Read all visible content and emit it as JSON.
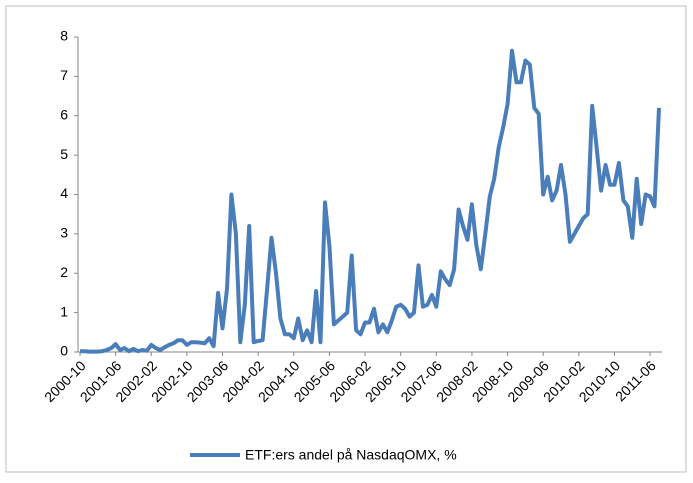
{
  "chart_data": {
    "type": "line",
    "categories": [
      "2000-10",
      null,
      null,
      null,
      null,
      null,
      null,
      null,
      "2001-06",
      null,
      null,
      null,
      null,
      null,
      null,
      null,
      "2002-02",
      null,
      null,
      null,
      null,
      null,
      null,
      null,
      "2002-10",
      null,
      null,
      null,
      null,
      null,
      null,
      null,
      "2003-06",
      null,
      null,
      null,
      null,
      null,
      null,
      null,
      "2004-02",
      null,
      null,
      null,
      null,
      null,
      null,
      null,
      "2004-10",
      null,
      null,
      null,
      null,
      null,
      null,
      null,
      "2005-06",
      null,
      null,
      null,
      null,
      null,
      null,
      null,
      "2006-02",
      null,
      null,
      null,
      null,
      null,
      null,
      null,
      "2006-10",
      null,
      null,
      null,
      null,
      null,
      null,
      null,
      "2007-06",
      null,
      null,
      null,
      null,
      null,
      null,
      null,
      "2008-02",
      null,
      null,
      null,
      null,
      null,
      null,
      null,
      "2008-10",
      null,
      null,
      null,
      null,
      null,
      null,
      null,
      "2009-06",
      null,
      null,
      null,
      null,
      null,
      null,
      null,
      "2010-02",
      null,
      null,
      null,
      null,
      null,
      null,
      null,
      "2010-10",
      null,
      null,
      null,
      null,
      null,
      null,
      null,
      "2011-06",
      null,
      null
    ],
    "series": [
      {
        "name": "ETF:ers andel på NasdaqOMX, %",
        "color": "#4a7ebb",
        "values": [
          0.02,
          0.02,
          0.01,
          0.01,
          0.01,
          0.02,
          0.05,
          0.1,
          0.2,
          0.05,
          0.1,
          0.02,
          0.08,
          0.02,
          0.05,
          0.03,
          0.18,
          0.1,
          0.05,
          0.12,
          0.18,
          0.22,
          0.3,
          0.3,
          0.18,
          0.25,
          0.25,
          0.24,
          0.22,
          0.35,
          0.15,
          1.5,
          0.6,
          1.6,
          4.0,
          3.0,
          0.25,
          1.2,
          3.2,
          0.25,
          0.28,
          0.3,
          1.6,
          2.9,
          2.0,
          0.85,
          0.45,
          0.45,
          0.35,
          0.85,
          0.3,
          0.55,
          0.25,
          1.55,
          0.25,
          3.8,
          2.7,
          0.7,
          0.8,
          0.9,
          1.0,
          2.45,
          0.55,
          0.45,
          0.75,
          0.75,
          1.1,
          0.5,
          0.7,
          0.5,
          0.8,
          1.15,
          1.2,
          1.1,
          0.9,
          1.0,
          2.2,
          1.15,
          1.2,
          1.45,
          1.15,
          2.05,
          1.85,
          1.7,
          2.1,
          3.62,
          3.2,
          2.85,
          3.75,
          2.7,
          2.1,
          3.0,
          3.95,
          4.4,
          5.2,
          5.7,
          6.3,
          7.65,
          6.85,
          6.85,
          7.4,
          7.3,
          6.2,
          6.05,
          4.0,
          4.45,
          3.85,
          4.1,
          4.75,
          4.0,
          2.8,
          3.0,
          3.2,
          3.4,
          3.5,
          6.25,
          5.2,
          4.1,
          4.75,
          4.25,
          4.25,
          4.8,
          3.85,
          3.7,
          2.9,
          4.4,
          3.25,
          4.0,
          3.95,
          3.7,
          6.2
        ]
      }
    ],
    "ylim": [
      0,
      8
    ],
    "yticks": [
      0,
      1,
      2,
      3,
      4,
      5,
      6,
      7,
      8
    ],
    "legend": "bottom"
  }
}
